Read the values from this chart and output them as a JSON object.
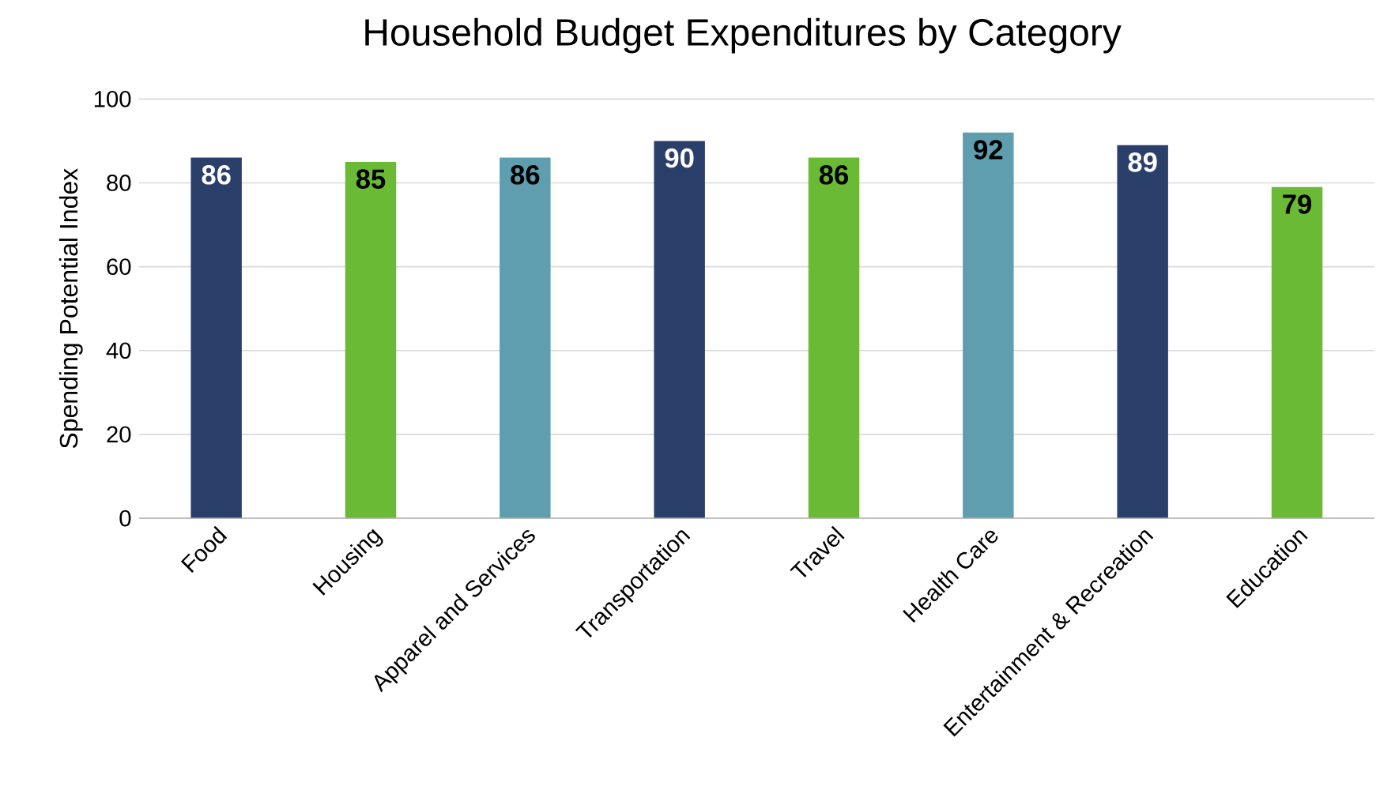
{
  "chart_data": {
    "type": "bar",
    "title": "Household Budget Expenditures by Category",
    "ylabel": "Spending Potential Index",
    "categories": [
      "Food",
      "Housing",
      "Apparel and Services",
      "Transportation",
      "Travel",
      "Health Care",
      "Entertainment & Recreation",
      "Education"
    ],
    "values": [
      86,
      85,
      86,
      90,
      86,
      92,
      89,
      79
    ],
    "colors": [
      "#2b3f6b",
      "#6aba35",
      "#5f9eae",
      "#2b3f6b",
      "#6aba35",
      "#5f9eae",
      "#2b3f6b",
      "#6aba35"
    ],
    "ylim": [
      0,
      100
    ],
    "yticks": [
      0,
      20,
      40,
      60,
      80,
      100
    ],
    "grid": "y",
    "data_labels": true
  }
}
